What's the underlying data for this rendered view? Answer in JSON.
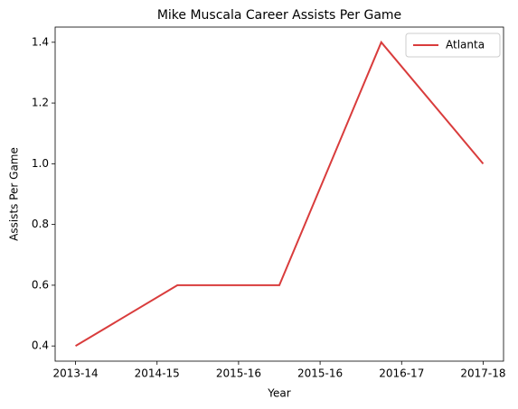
{
  "chart_data": {
    "type": "line",
    "title": "Mike Muscala Career Assists Per Game",
    "xlabel": "Year",
    "ylabel": "Assists Per Game",
    "x": [
      0,
      1,
      2,
      3,
      4
    ],
    "series": [
      {
        "name": "Atlanta",
        "color": "#d93c3c",
        "values": [
          0.4,
          0.6,
          0.6,
          1.4,
          1.0
        ]
      }
    ],
    "xlim": [
      -0.2,
      4.2
    ],
    "xticks": [
      {
        "value": 0,
        "label": "2013-14"
      },
      {
        "value": 0.8,
        "label": "2014-15"
      },
      {
        "value": 1.6,
        "label": "2015-16"
      },
      {
        "value": 2.4,
        "label": "2015-16"
      },
      {
        "value": 3.2,
        "label": "2016-17"
      },
      {
        "value": 4.0,
        "label": "2017-18"
      }
    ],
    "ylim": [
      0.35,
      1.45
    ],
    "yticks": [
      {
        "value": 0.4,
        "label": "0.4"
      },
      {
        "value": 0.6,
        "label": "0.6"
      },
      {
        "value": 0.8,
        "label": "0.8"
      },
      {
        "value": 1.0,
        "label": "1.0"
      },
      {
        "value": 1.2,
        "label": "1.2"
      },
      {
        "value": 1.4,
        "label": "1.4"
      }
    ],
    "legend": "upper right"
  }
}
